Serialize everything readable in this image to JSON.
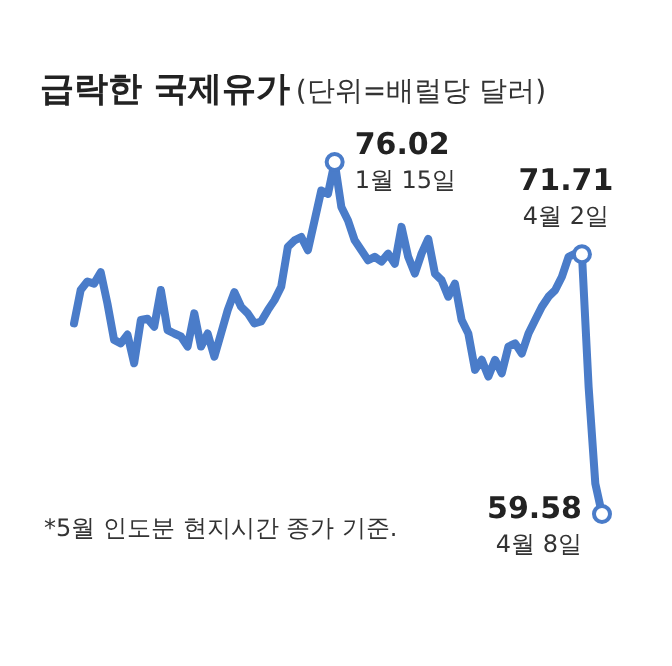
{
  "chart_data": {
    "type": "line",
    "title": "급락한 국제유가",
    "subtitle": "(단위=배럴당 달러)",
    "categories": [
      null,
      null,
      null,
      null,
      null,
      null,
      null,
      null,
      null,
      null,
      null,
      null,
      null,
      null,
      null,
      null,
      null,
      null,
      null,
      null,
      null,
      null,
      null,
      null,
      null,
      null,
      null,
      null,
      null,
      null,
      null,
      null,
      null,
      null,
      null,
      null,
      null,
      null,
      null,
      null,
      null,
      null,
      null,
      null,
      null,
      null,
      null,
      null,
      null,
      null,
      null,
      null,
      null,
      null,
      null,
      null,
      null,
      null,
      null,
      null,
      null,
      null,
      null,
      null,
      null,
      null,
      null,
      null,
      null,
      null,
      null,
      null,
      null,
      null,
      null,
      null,
      null,
      null,
      null,
      null
    ],
    "series": [
      {
        "color": "#4a7cc9",
        "values": [
          68.48,
          70.04,
          70.44,
          70.34,
          70.87,
          69.41,
          67.71,
          67.55,
          67.96,
          66.62,
          68.64,
          68.7,
          68.33,
          70.04,
          68.17,
          68.01,
          67.87,
          67.4,
          68.95,
          67.4,
          68.01,
          66.93,
          68.01,
          69.1,
          69.94,
          69.26,
          68.95,
          68.48,
          68.57,
          69.1,
          69.57,
          70.19,
          72.06,
          72.36,
          72.52,
          71.9,
          73.29,
          74.69,
          74.53,
          76.02,
          73.92,
          73.29,
          72.36,
          71.9,
          71.43,
          71.59,
          71.37,
          71.74,
          71.27,
          72.99,
          71.59,
          70.81,
          71.74,
          72.43,
          70.81,
          70.5,
          69.73,
          70.34,
          68.64,
          68.01,
          66.31,
          66.78,
          66.0,
          66.78,
          66.15,
          67.4,
          67.55,
          67.08,
          68.01,
          68.64,
          69.26,
          69.73,
          70.04,
          70.66,
          71.59,
          71.74,
          71.71,
          65.5,
          61.0,
          59.58
        ],
        "value_labels": [
          null,
          null,
          null,
          null,
          null,
          null,
          null,
          null,
          null,
          null,
          null,
          null,
          null,
          null,
          null,
          null,
          null,
          null,
          null,
          null,
          null,
          null,
          null,
          null,
          null,
          null,
          null,
          null,
          null,
          null,
          null,
          null,
          null,
          null,
          null,
          null,
          null,
          null,
          null,
          "76.02",
          null,
          null,
          null,
          null,
          null,
          null,
          null,
          null,
          null,
          null,
          null,
          null,
          null,
          null,
          null,
          null,
          null,
          null,
          null,
          null,
          null,
          null,
          null,
          null,
          null,
          null,
          null,
          null,
          null,
          null,
          null,
          null,
          null,
          null,
          null,
          null,
          "71.71",
          null,
          null,
          "59.58"
        ]
      }
    ],
    "annotations": [
      "1월 15일",
      "4월 2일",
      "4월 8일",
      "*5월 인도분 현지시간 종가 기준."
    ]
  }
}
